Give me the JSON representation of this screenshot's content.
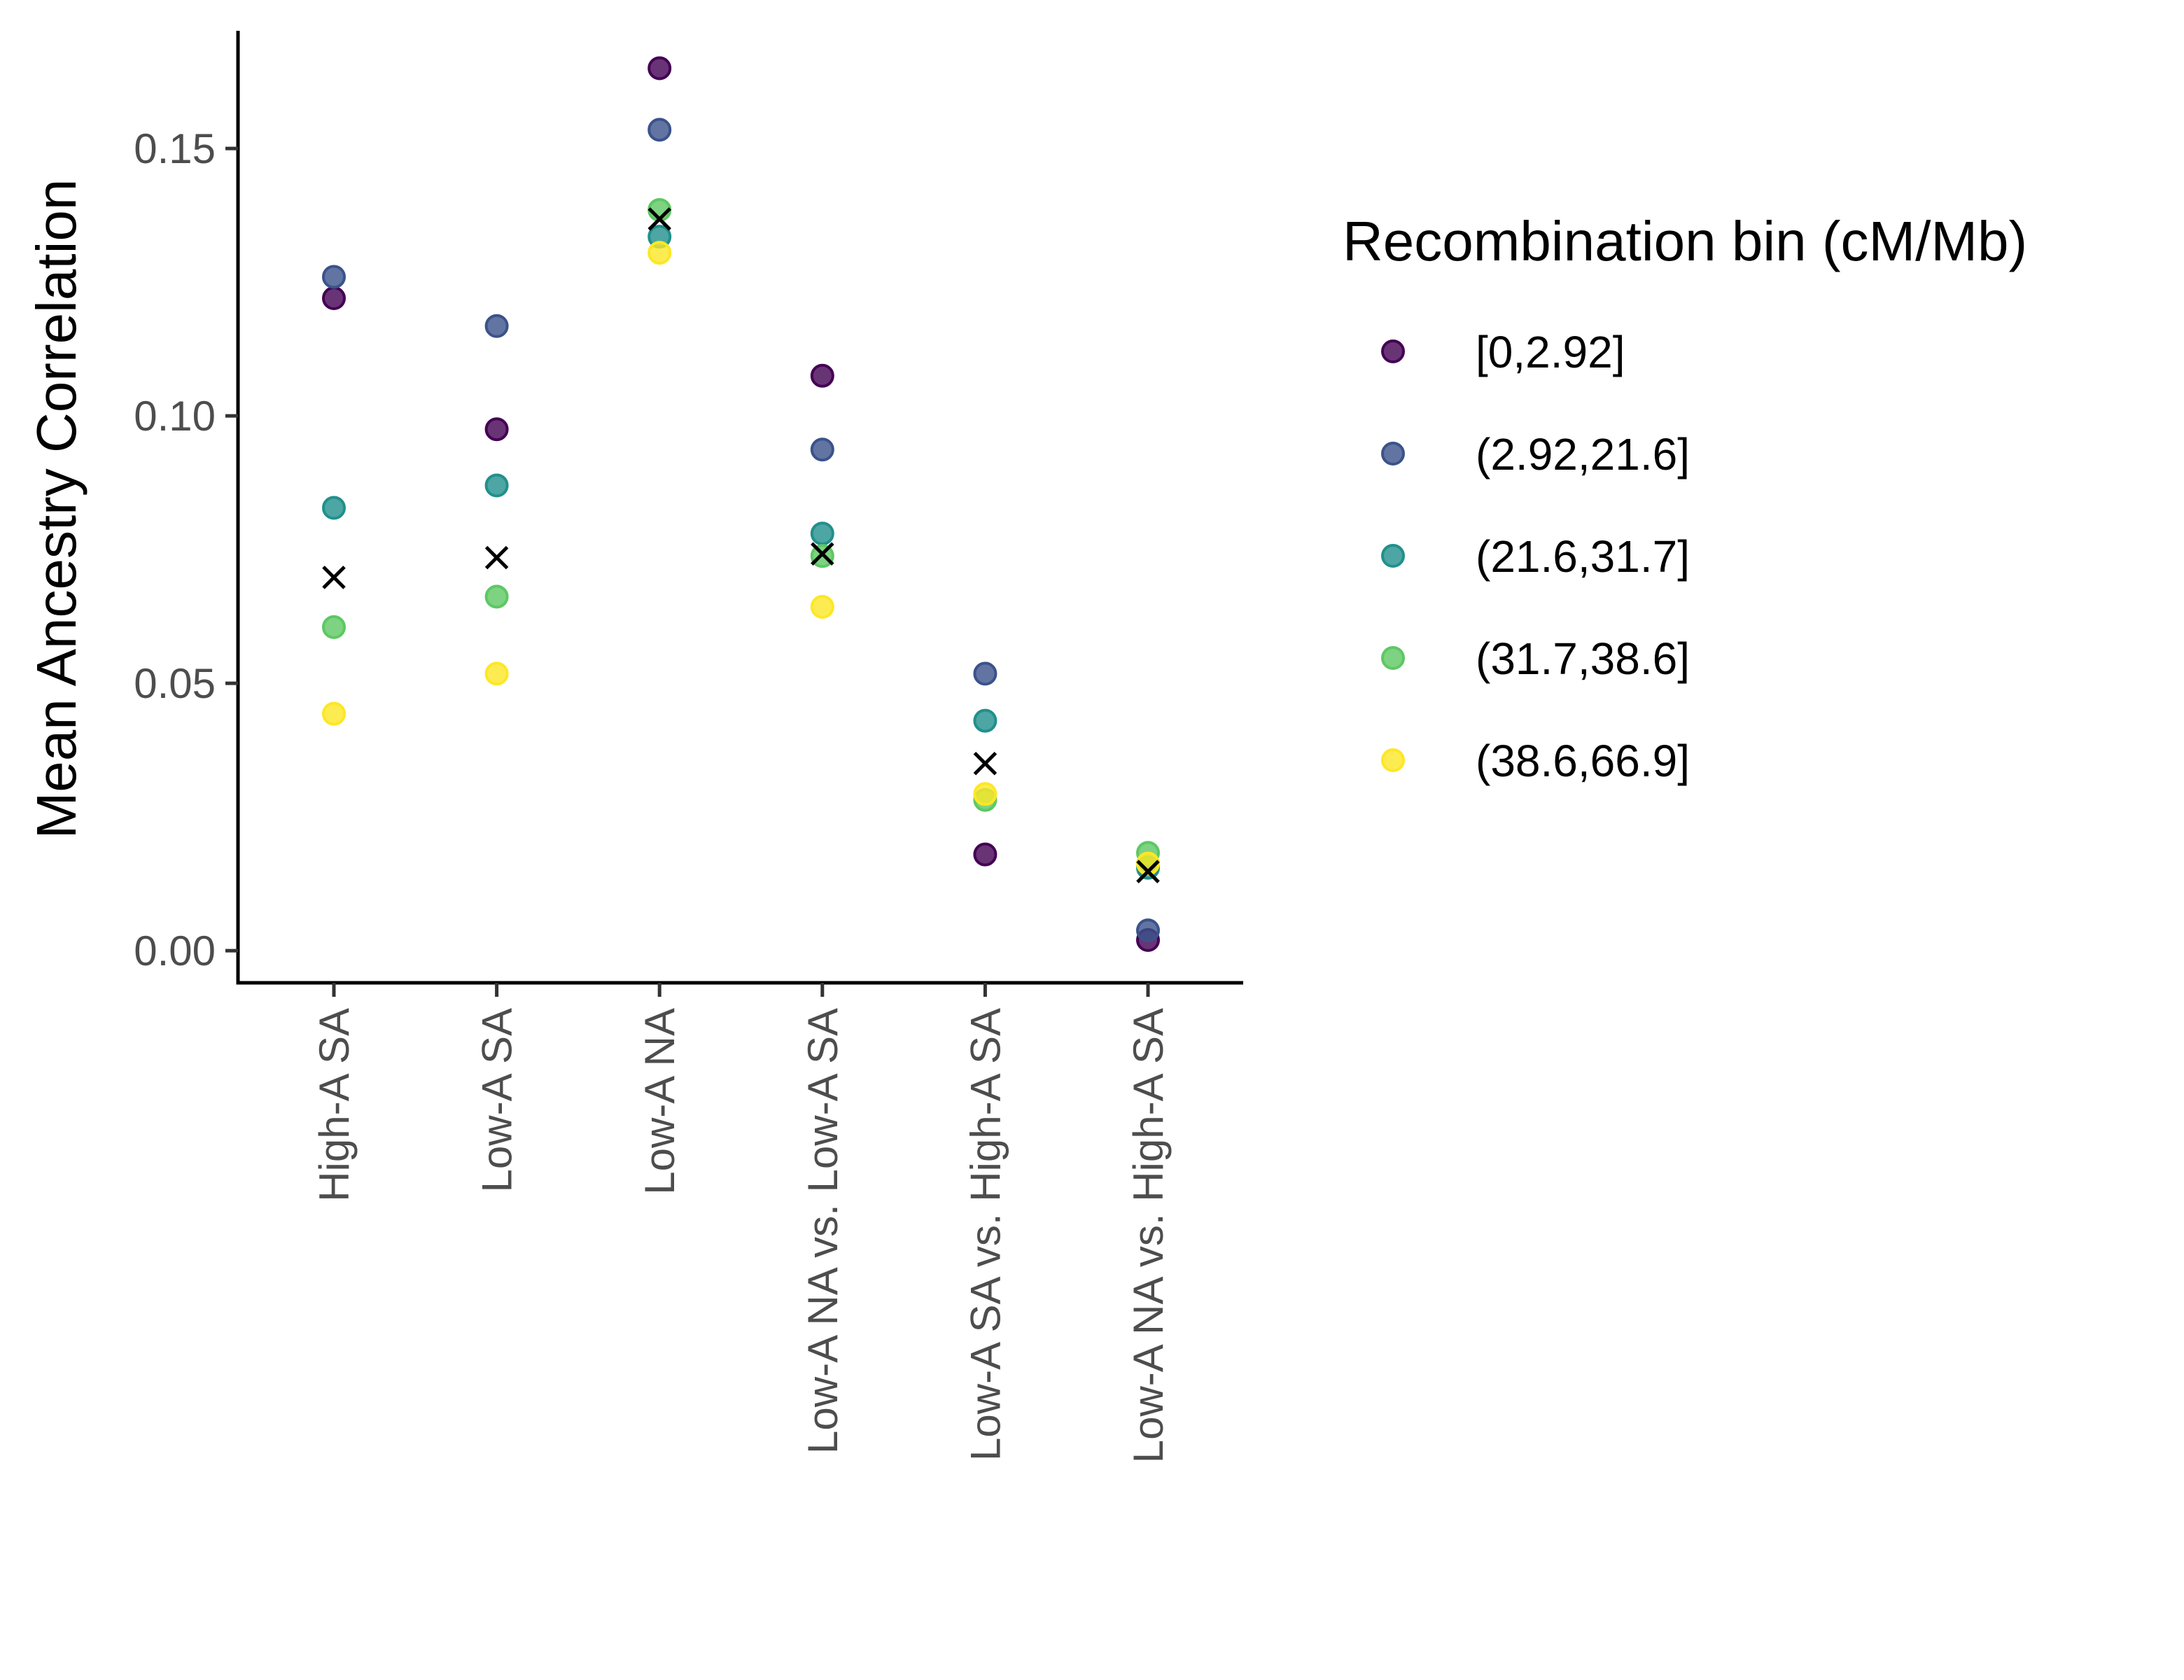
{
  "chart_data": {
    "type": "scatter",
    "title": "",
    "xlabel": "",
    "ylabel": "Mean Ancestry Correlation",
    "categories": [
      "High-A SA",
      "Low-A SA",
      "Low-A NA",
      "Low-A NA vs. Low-A SA",
      "Low-A SA vs. High-A SA",
      "Low-A NA vs. High-A SA"
    ],
    "ylim": [
      -0.006,
      0.172
    ],
    "yticks": [
      0.0,
      0.05,
      0.1,
      0.15
    ],
    "ytick_labels": [
      "0.00",
      "0.05",
      "0.10",
      "0.15"
    ],
    "grid": false,
    "legend": {
      "title": "Recombination bin (cM/Mb)",
      "position": "right"
    },
    "series": [
      {
        "name": "[0,2.92]",
        "color": "#440154",
        "values": [
          0.122,
          0.0975,
          0.165,
          0.1075,
          0.018,
          0.002
        ]
      },
      {
        "name": "(2.92,21.6]",
        "color": "#3B528B",
        "values": [
          0.126,
          0.1168,
          0.1535,
          0.0937,
          0.0518,
          0.0038
        ]
      },
      {
        "name": "(21.6,31.7]",
        "color": "#21908C",
        "values": [
          0.0828,
          0.087,
          0.1335,
          0.078,
          0.043,
          0.0155
        ]
      },
      {
        "name": "(31.7,38.6]",
        "color": "#5DC863",
        "values": [
          0.0605,
          0.0662,
          0.1385,
          0.0738,
          0.0282,
          0.0183
        ]
      },
      {
        "name": "(38.6,66.9]",
        "color": "#FDE725",
        "values": [
          0.0443,
          0.0518,
          0.1305,
          0.0643,
          0.0293,
          0.0163
        ]
      }
    ],
    "mean_marker": {
      "symbol": "×",
      "color": "#000000",
      "values": [
        0.0698,
        0.0735,
        0.1368,
        0.0742,
        0.035,
        0.0148
      ]
    }
  }
}
